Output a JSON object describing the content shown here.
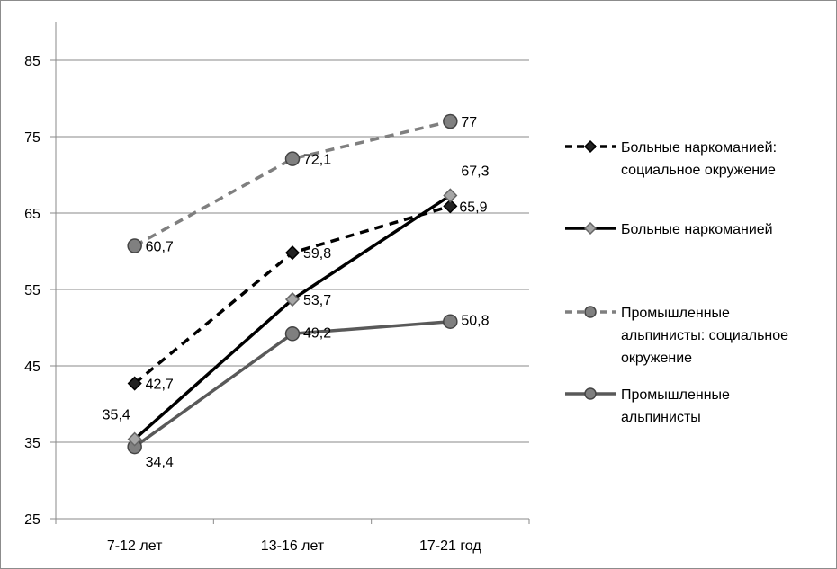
{
  "chart_data": {
    "type": "line",
    "categories": [
      "7-12 лет",
      "13-16 лет",
      "17-21 год"
    ],
    "ylim": [
      25,
      90
    ],
    "yticks": [
      25,
      35,
      45,
      55,
      65,
      75,
      85
    ],
    "ytick_labels": [
      "25",
      "35",
      "45",
      "55",
      "65",
      "75",
      "85"
    ],
    "grid": true,
    "legend_position": "right",
    "series": [
      {
        "name": "Больные наркоманией: социальное окружение",
        "legend_lines": [
          "Больные наркоманией:",
          "социальное окружение"
        ],
        "values": [
          42.7,
          59.8,
          65.9
        ],
        "labels": [
          "42,7",
          "59,8",
          "65,9"
        ],
        "color": "#000000",
        "line_style": "dashed",
        "marker": "diamond",
        "marker_color": "#222222"
      },
      {
        "name": "Больные наркоманией",
        "legend_lines": [
          "Больные наркоманией"
        ],
        "values": [
          35.4,
          53.7,
          67.3
        ],
        "labels": [
          "35,4",
          "53,7",
          "67,3"
        ],
        "color": "#000000",
        "line_style": "solid",
        "marker": "diamond",
        "marker_color": "#a6a6a6"
      },
      {
        "name": "Промышленные альпинисты: социальное окружение",
        "legend_lines": [
          "Промышленные",
          "альпинисты: социальное",
          "окружение"
        ],
        "values": [
          60.7,
          72.1,
          77
        ],
        "labels": [
          "60,7",
          "72,1",
          "77"
        ],
        "color": "#7f7f7f",
        "line_style": "dashed",
        "marker": "circle",
        "marker_color": "#808080"
      },
      {
        "name": "Промышленные альпинисты",
        "legend_lines": [
          "Промышленные",
          "альпинисты"
        ],
        "values": [
          34.4,
          49.2,
          50.8
        ],
        "labels": [
          "34,4",
          "49,2",
          "50,8"
        ],
        "color": "#595959",
        "line_style": "solid",
        "marker": "circle",
        "marker_color": "#7f7f7f"
      }
    ]
  }
}
